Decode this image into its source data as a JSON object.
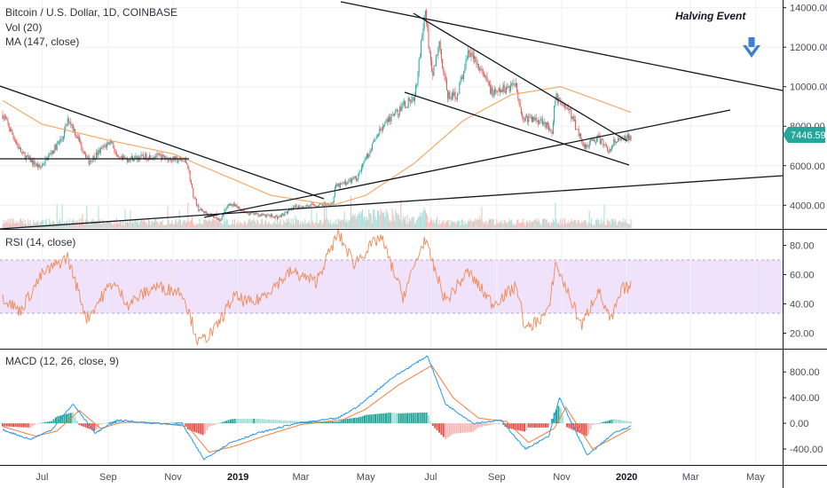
{
  "chart_data": [
    {
      "type": "candlestick",
      "title": "Bitcoin / U.S. Dollar, 1D, COINBASE",
      "legend": [
        "Vol (20)",
        "MA (147, close)"
      ],
      "y_ticks": [
        "4000.00",
        "6000.00",
        "8000.00",
        "10000.00",
        "12000.00",
        "14000.00"
      ],
      "ylim": [
        2800,
        14300
      ],
      "x_ticks": [
        "Jul",
        "Sep",
        "Nov",
        "2019",
        "Mar",
        "May",
        "Jul",
        "Sep",
        "Nov",
        "2020",
        "Mar",
        "May"
      ],
      "last_price": "7446.59",
      "annotation": "Halving Event",
      "price_path": [
        {
          "date": "2018-05-25",
          "price": 8600
        },
        {
          "date": "2018-06-12",
          "price": 6600
        },
        {
          "date": "2018-06-29",
          "price": 5900
        },
        {
          "date": "2018-07-20",
          "price": 7400
        },
        {
          "date": "2018-07-26",
          "price": 8400
        },
        {
          "date": "2018-08-14",
          "price": 6200
        },
        {
          "date": "2018-09-04",
          "price": 7300
        },
        {
          "date": "2018-09-10",
          "price": 6300
        },
        {
          "date": "2018-10-15",
          "price": 6500
        },
        {
          "date": "2018-11-14",
          "price": 6200
        },
        {
          "date": "2018-11-20",
          "price": 4500
        },
        {
          "date": "2018-11-25",
          "price": 3800
        },
        {
          "date": "2018-12-15",
          "price": 3250
        },
        {
          "date": "2018-12-24",
          "price": 4100
        },
        {
          "date": "2019-01-10",
          "price": 3600
        },
        {
          "date": "2019-02-08",
          "price": 3400
        },
        {
          "date": "2019-02-24",
          "price": 3900
        },
        {
          "date": "2019-03-31",
          "price": 4100
        },
        {
          "date": "2019-04-02",
          "price": 4900
        },
        {
          "date": "2019-04-23",
          "price": 5400
        },
        {
          "date": "2019-05-14",
          "price": 7800
        },
        {
          "date": "2019-05-30",
          "price": 8700
        },
        {
          "date": "2019-06-16",
          "price": 9500
        },
        {
          "date": "2019-06-26",
          "price": 13800
        },
        {
          "date": "2019-07-02",
          "price": 10500
        },
        {
          "date": "2019-07-09",
          "price": 12200
        },
        {
          "date": "2019-07-17",
          "price": 9500
        },
        {
          "date": "2019-07-26",
          "price": 9600
        },
        {
          "date": "2019-08-06",
          "price": 11800
        },
        {
          "date": "2019-08-20",
          "price": 10500
        },
        {
          "date": "2019-08-29",
          "price": 9600
        },
        {
          "date": "2019-09-19",
          "price": 10200
        },
        {
          "date": "2019-09-25",
          "price": 8400
        },
        {
          "date": "2019-10-15",
          "price": 8300
        },
        {
          "date": "2019-10-23",
          "price": 7500
        },
        {
          "date": "2019-10-26",
          "price": 9500
        },
        {
          "date": "2019-11-08",
          "price": 8800
        },
        {
          "date": "2019-11-22",
          "price": 7000
        },
        {
          "date": "2019-12-05",
          "price": 7400
        },
        {
          "date": "2019-12-17",
          "price": 6700
        },
        {
          "date": "2019-12-20",
          "price": 7200
        },
        {
          "date": "2020-01-05",
          "price": 7446
        }
      ],
      "ma_147_path": [
        {
          "date": "2018-05-25",
          "price": 9300
        },
        {
          "date": "2018-07-01",
          "price": 8100
        },
        {
          "date": "2018-09-01",
          "price": 7300
        },
        {
          "date": "2018-11-01",
          "price": 6600
        },
        {
          "date": "2018-12-15",
          "price": 5600
        },
        {
          "date": "2019-02-01",
          "price": 4500
        },
        {
          "date": "2019-03-31",
          "price": 4000
        },
        {
          "date": "2019-05-01",
          "price": 4500
        },
        {
          "date": "2019-06-15",
          "price": 6100
        },
        {
          "date": "2019-08-01",
          "price": 8300
        },
        {
          "date": "2019-09-15",
          "price": 9600
        },
        {
          "date": "2019-10-31",
          "price": 10000
        },
        {
          "date": "2019-12-01",
          "price": 9400
        },
        {
          "date": "2020-01-05",
          "price": 8700
        }
      ]
    },
    {
      "type": "line",
      "title": "RSI (14, close)",
      "y_ticks": [
        "20.00",
        "40.00",
        "60.00",
        "80.00"
      ],
      "ylim": [
        10,
        90
      ],
      "band": [
        30,
        70
      ],
      "series": [
        {
          "values": [
            {
              "date": "2018-05-25",
              "value": 45
            },
            {
              "date": "2018-06-10",
              "value": 35
            },
            {
              "date": "2018-07-01",
              "value": 60
            },
            {
              "date": "2018-07-25",
              "value": 72
            },
            {
              "date": "2018-08-12",
              "value": 30
            },
            {
              "date": "2018-09-05",
              "value": 55
            },
            {
              "date": "2018-09-20",
              "value": 40
            },
            {
              "date": "2018-10-15",
              "value": 52
            },
            {
              "date": "2018-11-10",
              "value": 48
            },
            {
              "date": "2018-11-25",
              "value": 13
            },
            {
              "date": "2018-12-10",
              "value": 22
            },
            {
              "date": "2018-12-28",
              "value": 45
            },
            {
              "date": "2019-01-15",
              "value": 40
            },
            {
              "date": "2019-02-20",
              "value": 62
            },
            {
              "date": "2019-03-15",
              "value": 55
            },
            {
              "date": "2019-04-05",
              "value": 88
            },
            {
              "date": "2019-04-20",
              "value": 68
            },
            {
              "date": "2019-05-15",
              "value": 86
            },
            {
              "date": "2019-06-05",
              "value": 45
            },
            {
              "date": "2019-06-25",
              "value": 84
            },
            {
              "date": "2019-07-15",
              "value": 42
            },
            {
              "date": "2019-08-05",
              "value": 62
            },
            {
              "date": "2019-08-28",
              "value": 40
            },
            {
              "date": "2019-09-20",
              "value": 52
            },
            {
              "date": "2019-09-28",
              "value": 22
            },
            {
              "date": "2019-10-20",
              "value": 35
            },
            {
              "date": "2019-10-26",
              "value": 68
            },
            {
              "date": "2019-11-20",
              "value": 25
            },
            {
              "date": "2019-12-05",
              "value": 50
            },
            {
              "date": "2019-12-17",
              "value": 28
            },
            {
              "date": "2019-12-28",
              "value": 50
            },
            {
              "date": "2020-01-05",
              "value": 52
            }
          ]
        }
      ]
    },
    {
      "type": "line",
      "title": "MACD (12, 26, close, 9)",
      "y_ticks": [
        "-400.00",
        "0.00",
        "400.00",
        "800.00"
      ],
      "ylim": [
        -620,
        1120
      ],
      "series": [
        {
          "values": [
            {
              "date": "2018-05-25",
              "value": -100
            },
            {
              "date": "2018-06-20",
              "value": -250
            },
            {
              "date": "2018-07-10",
              "value": -100
            },
            {
              "date": "2018-07-30",
              "value": 300
            },
            {
              "date": "2018-08-20",
              "value": -150
            },
            {
              "date": "2018-09-10",
              "value": 50
            },
            {
              "date": "2018-10-15",
              "value": 0
            },
            {
              "date": "2018-11-10",
              "value": -20
            },
            {
              "date": "2018-11-30",
              "value": -560
            },
            {
              "date": "2018-12-25",
              "value": -300
            },
            {
              "date": "2019-01-20",
              "value": -150
            },
            {
              "date": "2019-02-25",
              "value": 0
            },
            {
              "date": "2019-04-05",
              "value": 80
            },
            {
              "date": "2019-04-25",
              "value": 280
            },
            {
              "date": "2019-05-25",
              "value": 700
            },
            {
              "date": "2019-06-28",
              "value": 1050
            },
            {
              "date": "2019-07-15",
              "value": 300
            },
            {
              "date": "2019-08-10",
              "value": 0
            },
            {
              "date": "2019-09-05",
              "value": 50
            },
            {
              "date": "2019-09-28",
              "value": -400
            },
            {
              "date": "2019-10-20",
              "value": -200
            },
            {
              "date": "2019-10-30",
              "value": 400
            },
            {
              "date": "2019-11-25",
              "value": -500
            },
            {
              "date": "2019-12-20",
              "value": -150
            },
            {
              "date": "2020-01-05",
              "value": -50
            }
          ]
        },
        {
          "values": [
            {
              "date": "2018-05-25",
              "value": -50
            },
            {
              "date": "2018-06-25",
              "value": -200
            },
            {
              "date": "2018-07-15",
              "value": -120
            },
            {
              "date": "2018-08-05",
              "value": 200
            },
            {
              "date": "2018-08-25",
              "value": -80
            },
            {
              "date": "2018-09-15",
              "value": 20
            },
            {
              "date": "2018-10-15",
              "value": 10
            },
            {
              "date": "2018-11-15",
              "value": -50
            },
            {
              "date": "2018-12-05",
              "value": -450
            },
            {
              "date": "2018-12-30",
              "value": -350
            },
            {
              "date": "2019-01-25",
              "value": -200
            },
            {
              "date": "2019-03-01",
              "value": -20
            },
            {
              "date": "2019-04-10",
              "value": 60
            },
            {
              "date": "2019-05-01",
              "value": 220
            },
            {
              "date": "2019-06-01",
              "value": 600
            },
            {
              "date": "2019-07-02",
              "value": 900
            },
            {
              "date": "2019-07-22",
              "value": 400
            },
            {
              "date": "2019-08-15",
              "value": 80
            },
            {
              "date": "2019-09-10",
              "value": 30
            },
            {
              "date": "2019-10-01",
              "value": -300
            },
            {
              "date": "2019-10-25",
              "value": -80
            },
            {
              "date": "2019-11-05",
              "value": 250
            },
            {
              "date": "2019-11-30",
              "value": -400
            },
            {
              "date": "2019-12-25",
              "value": -180
            },
            {
              "date": "2020-01-05",
              "value": -80
            }
          ]
        }
      ]
    }
  ]
}
